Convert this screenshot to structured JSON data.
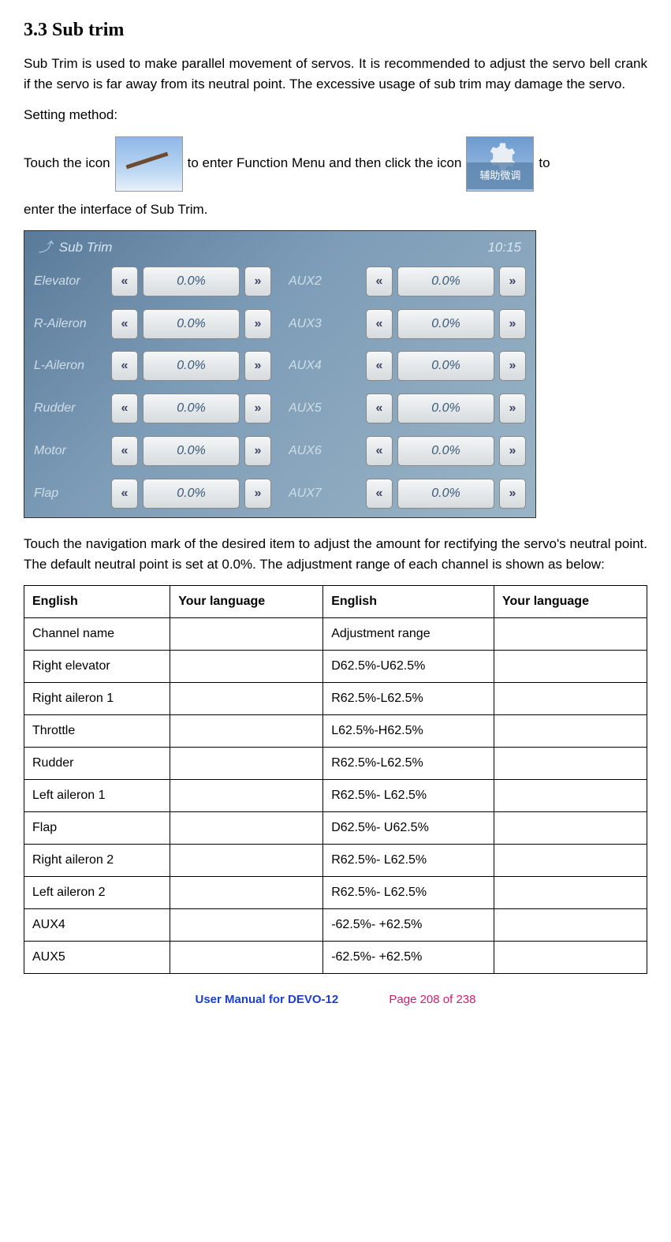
{
  "section_title": "3.3 Sub trim",
  "intro_paragraph": "Sub Trim is used to make parallel movement of servos. It is recommended to adjust the servo bell crank if the servo is far away from its neutral point. The excessive usage of sub trim may damage the servo.",
  "setting_method_label": "Setting method:",
  "icon_line": {
    "pre": "Touch the icon",
    "mid": "to enter Function Menu and then click the icon",
    "post": "to",
    "line2": "enter the interface of Sub Trim."
  },
  "icon2_cn_label": "辅助微调",
  "screenshot": {
    "title": "Sub Trim",
    "time": "10:15",
    "left_channels": [
      {
        "label": "Elevator",
        "value": "0.0%"
      },
      {
        "label": "R-Aileron",
        "value": "0.0%"
      },
      {
        "label": "L-Aileron",
        "value": "0.0%"
      },
      {
        "label": "Rudder",
        "value": "0.0%"
      },
      {
        "label": "Motor",
        "value": "0.0%"
      },
      {
        "label": "Flap",
        "value": "0.0%"
      }
    ],
    "right_channels": [
      {
        "label": "AUX2",
        "value": "0.0%"
      },
      {
        "label": "AUX3",
        "value": "0.0%"
      },
      {
        "label": "AUX4",
        "value": "0.0%"
      },
      {
        "label": "AUX5",
        "value": "0.0%"
      },
      {
        "label": "AUX6",
        "value": "0.0%"
      },
      {
        "label": "AUX7",
        "value": "0.0%"
      }
    ]
  },
  "post_screenshot_paragraph": "Touch the navigation mark of the desired item to adjust the amount for rectifying the servo's neutral point. The default neutral point is set at 0.0%. The adjustment range of each channel is shown as below:",
  "table": {
    "headers": [
      "English",
      "Your language",
      "English",
      "Your language"
    ],
    "rows": [
      [
        "Channel name",
        "",
        "Adjustment range",
        ""
      ],
      [
        "Right elevator",
        "",
        "D62.5%-U62.5%",
        ""
      ],
      [
        "Right aileron 1",
        "",
        "R62.5%-L62.5%",
        ""
      ],
      [
        "Throttle",
        "",
        "L62.5%-H62.5%",
        ""
      ],
      [
        "Rudder",
        "",
        "R62.5%-L62.5%",
        ""
      ],
      [
        "Left aileron 1",
        "",
        "R62.5%- L62.5%",
        ""
      ],
      [
        "Flap",
        "",
        "D62.5%- U62.5%",
        ""
      ],
      [
        "Right aileron 2",
        "",
        "R62.5%- L62.5%",
        ""
      ],
      [
        "Left aileron 2",
        "",
        "R62.5%- L62.5%",
        ""
      ],
      [
        "AUX4",
        "",
        "-62.5%- +62.5%",
        ""
      ],
      [
        "AUX5",
        "",
        "-62.5%- +62.5%",
        ""
      ]
    ]
  },
  "footer": {
    "doc": "User Manual for DEVO-12",
    "page": "Page 208 of 238"
  }
}
